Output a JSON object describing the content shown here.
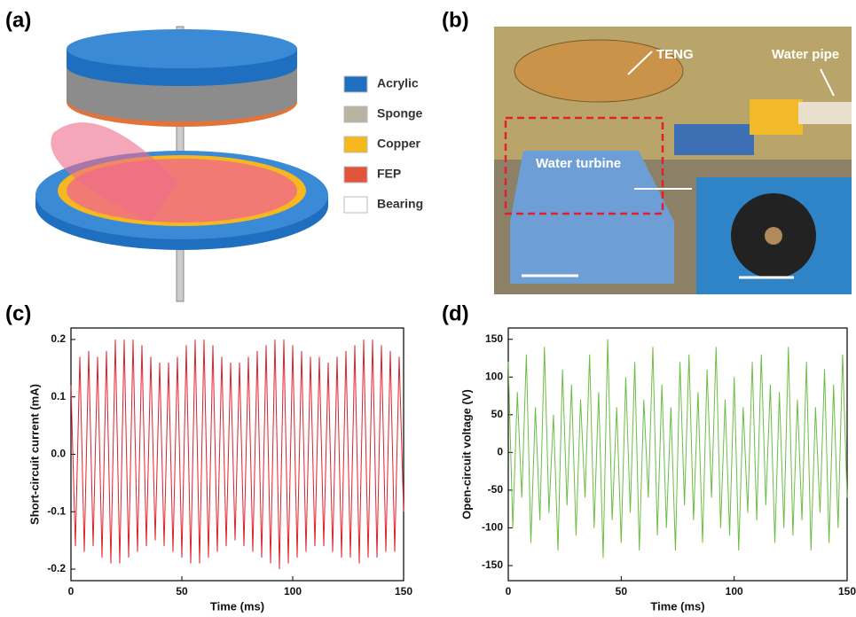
{
  "panel_a": {
    "label": "(a)",
    "legend": [
      {
        "name": "Acrylic",
        "color": "#1f6fc0"
      },
      {
        "name": "Sponge",
        "color": "#b8b4a2"
      },
      {
        "name": "Copper",
        "color": "#f6b81e"
      },
      {
        "name": "FEP",
        "color": "#e2553a"
      },
      {
        "name": "Bearing",
        "color": "#ffffff"
      }
    ]
  },
  "panel_b": {
    "label": "(b)",
    "annotations": [
      "TENG",
      "Water pipe",
      "Water turbine"
    ]
  },
  "chart_data": [
    {
      "type": "line",
      "panel_label": "(c)",
      "x_label": "Time (ms)",
      "y_label": "Short-circuit current (mA)",
      "xlim": [
        0,
        150
      ],
      "xticks": [
        0,
        50,
        100,
        150
      ],
      "ylim": [
        -0.22,
        0.22
      ],
      "yticks": [
        -0.2,
        -0.1,
        {
          "value": 0,
          "label": "0.0"
        },
        0.1,
        0.2
      ],
      "x": [
        0,
        2,
        4,
        6,
        8,
        10,
        12,
        14,
        16,
        18,
        20,
        22,
        24,
        26,
        28,
        30,
        32,
        34,
        36,
        38,
        40,
        42,
        44,
        46,
        48,
        50,
        52,
        54,
        56,
        58,
        60,
        62,
        64,
        66,
        68,
        70,
        72,
        74,
        76,
        78,
        80,
        82,
        84,
        86,
        88,
        90,
        92,
        94,
        96,
        98,
        100,
        102,
        104,
        106,
        108,
        110,
        112,
        114,
        116,
        118,
        120,
        122,
        124,
        126,
        128,
        130,
        132,
        134,
        136,
        138,
        140,
        142,
        144,
        146,
        148,
        150
      ],
      "series": [
        {
          "color": "#e0202a",
          "values": [
            0.12,
            -0.16,
            0.17,
            -0.17,
            0.18,
            -0.16,
            0.17,
            -0.18,
            0.18,
            -0.19,
            0.2,
            -0.19,
            0.2,
            -0.18,
            0.2,
            -0.17,
            0.19,
            -0.16,
            0.17,
            -0.15,
            0.16,
            -0.16,
            0.16,
            -0.17,
            0.17,
            -0.18,
            0.19,
            -0.19,
            0.2,
            -0.19,
            0.2,
            -0.18,
            0.19,
            -0.17,
            0.17,
            -0.16,
            0.16,
            -0.15,
            0.16,
            -0.16,
            0.17,
            -0.17,
            0.18,
            -0.18,
            0.19,
            -0.19,
            0.2,
            -0.2,
            0.2,
            -0.19,
            0.19,
            -0.18,
            0.18,
            -0.17,
            0.17,
            -0.16,
            0.17,
            -0.16,
            0.16,
            -0.17,
            0.17,
            -0.18,
            0.18,
            -0.18,
            0.19,
            -0.19,
            0.2,
            -0.18,
            0.2,
            -0.18,
            0.19,
            -0.17,
            0.18,
            -0.17,
            0.17,
            -0.1
          ]
        }
      ]
    },
    {
      "type": "line",
      "panel_label": "(d)",
      "x_label": "Time (ms)",
      "y_label": "Open-circuit voltage (V)",
      "xlim": [
        0,
        150
      ],
      "xticks": [
        0,
        50,
        100,
        150
      ],
      "ylim": [
        -170,
        165
      ],
      "yticks": [
        -150,
        -100,
        -50,
        0,
        50,
        100,
        150
      ],
      "x": [
        0,
        2,
        4,
        6,
        8,
        10,
        12,
        14,
        16,
        18,
        20,
        22,
        24,
        26,
        28,
        30,
        32,
        34,
        36,
        38,
        40,
        42,
        44,
        46,
        48,
        50,
        52,
        54,
        56,
        58,
        60,
        62,
        64,
        66,
        68,
        70,
        72,
        74,
        76,
        78,
        80,
        82,
        84,
        86,
        88,
        90,
        92,
        94,
        96,
        98,
        100,
        102,
        104,
        106,
        108,
        110,
        112,
        114,
        116,
        118,
        120,
        122,
        124,
        126,
        128,
        130,
        132,
        134,
        136,
        138,
        140,
        142,
        144,
        146,
        148,
        150
      ],
      "series": [
        {
          "color": "#6cbd45",
          "values": [
            120,
            -100,
            80,
            -60,
            130,
            -120,
            60,
            -90,
            140,
            -80,
            50,
            -130,
            110,
            -70,
            90,
            -110,
            70,
            -60,
            130,
            -100,
            80,
            -140,
            150,
            -90,
            60,
            -120,
            100,
            -80,
            120,
            -130,
            70,
            -60,
            140,
            -110,
            90,
            -100,
            60,
            -130,
            120,
            -70,
            130,
            -90,
            80,
            -120,
            110,
            -60,
            140,
            -100,
            70,
            -110,
            100,
            -130,
            60,
            -80,
            120,
            -90,
            130,
            -70,
            90,
            -120,
            80,
            -100,
            140,
            -110,
            70,
            -90,
            120,
            -130,
            60,
            -80,
            110,
            -120,
            90,
            -100,
            130,
            -60
          ]
        }
      ]
    }
  ]
}
